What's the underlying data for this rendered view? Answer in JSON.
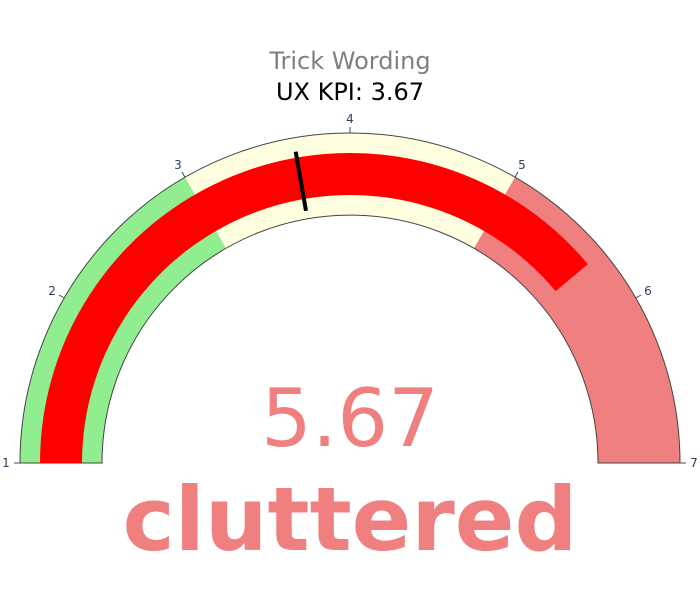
{
  "colors": {
    "band_low": "#90EE90",
    "band_mid": "#FFFFE0",
    "band_high": "#F08080",
    "bar": "#FF0000",
    "threshold": "#000000",
    "value_text": "#F08080",
    "title_sub": "#808080",
    "tick": "#2a3f5f"
  },
  "chart_data": {
    "type": "gauge",
    "title": "Trick Wording",
    "subtitle": "UX KPI: 3.67",
    "range": [
      1,
      7
    ],
    "tick_labels": [
      "1",
      "2",
      "3",
      "4",
      "5",
      "6",
      "7"
    ],
    "ticks": [
      1,
      2,
      3,
      4,
      5,
      6,
      7
    ],
    "value": 5.67,
    "value_text": "5.67",
    "rating_text": "cluttered",
    "threshold": 3.67,
    "steps": [
      {
        "range": [
          1,
          3
        ],
        "color": "#90EE90"
      },
      {
        "range": [
          3,
          5
        ],
        "color": "#FFFFE0"
      },
      {
        "range": [
          5,
          7
        ],
        "color": "#F08080"
      }
    ]
  }
}
